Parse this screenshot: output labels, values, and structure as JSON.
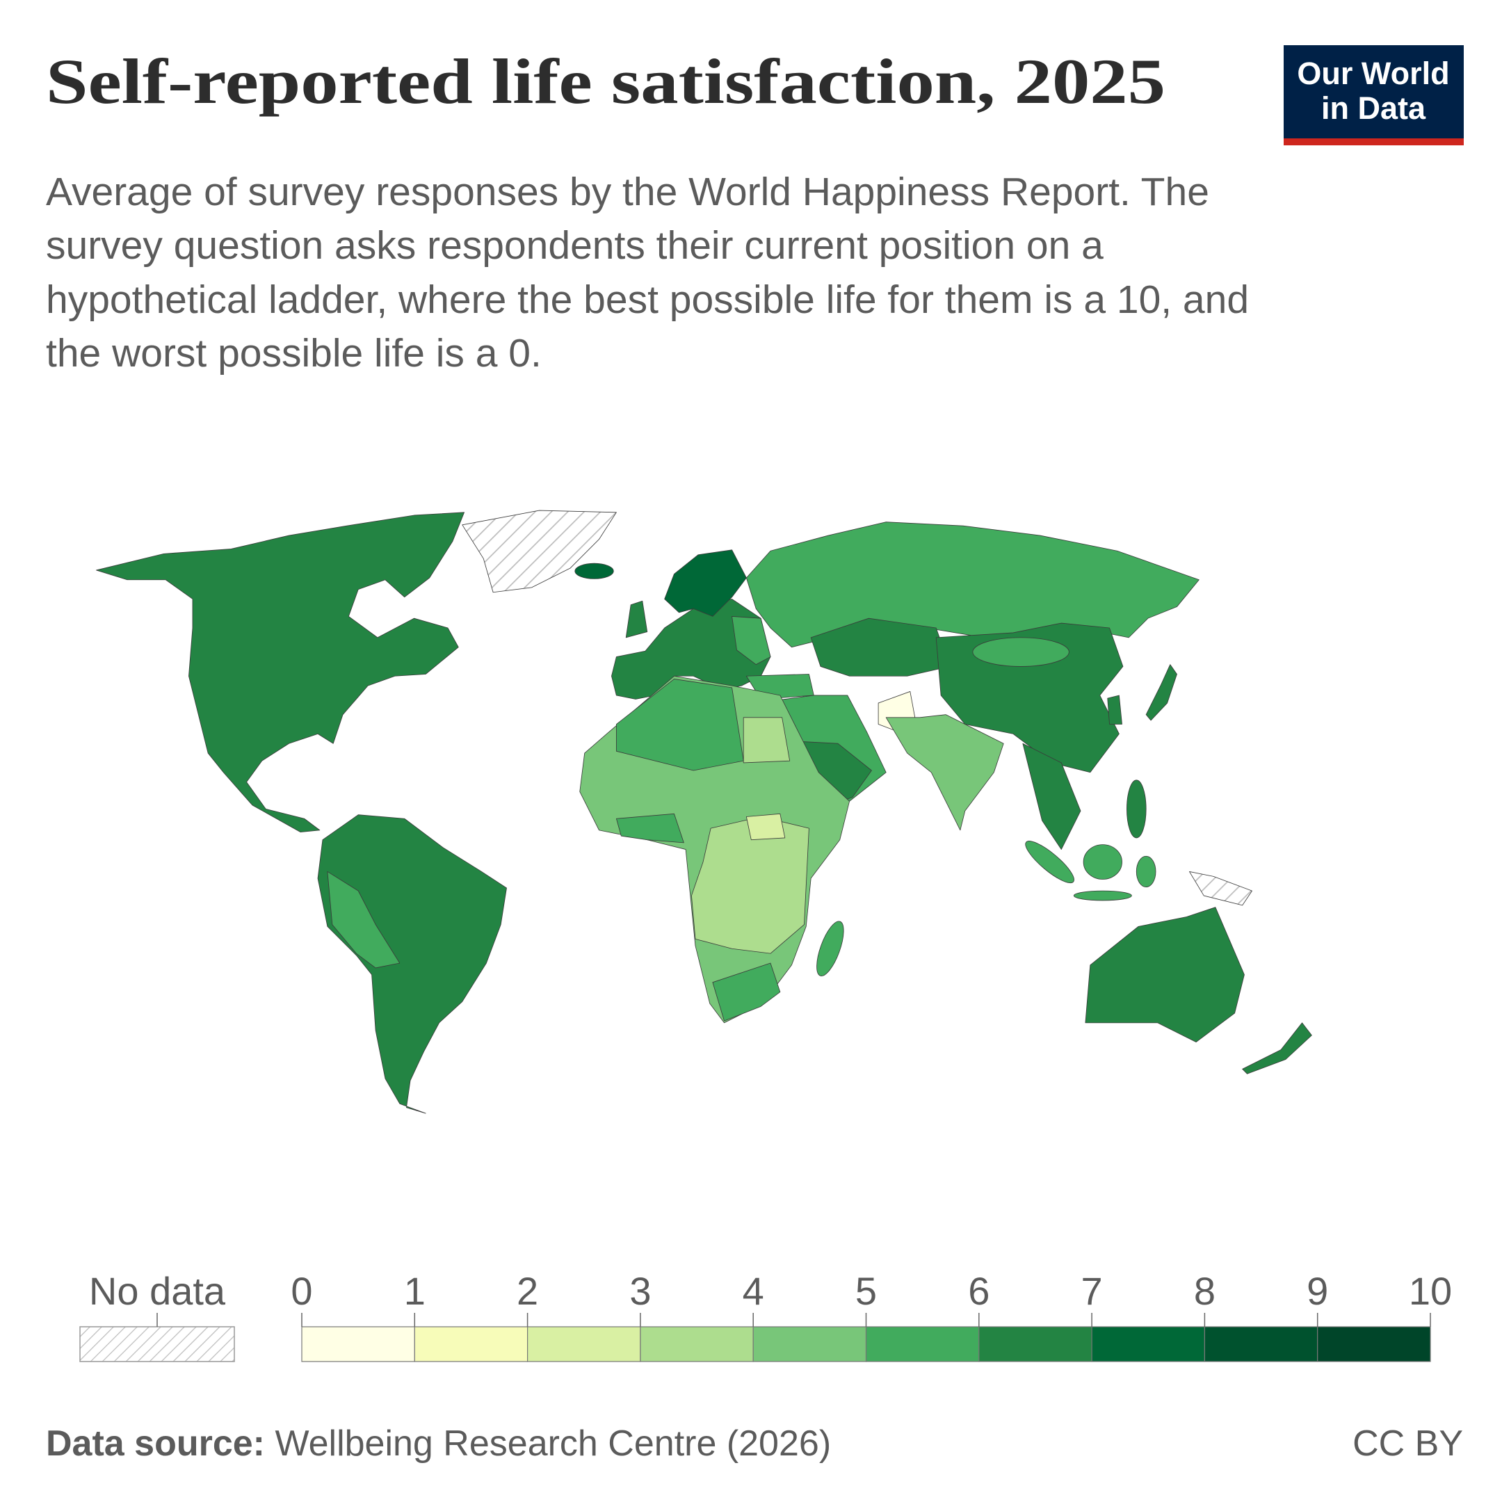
{
  "header": {
    "title": "Self-reported life satisfaction, 2025",
    "subtitle": [
      "Average of survey responses by the World Happiness Report. The",
      "survey question asks respondents their current position on a",
      "hypothetical ladder, where the best possible life for them is a 10, and",
      "the worst possible life is a 0."
    ],
    "logo": [
      "Our World",
      "in Data"
    ]
  },
  "legend": {
    "no_data": "No data",
    "ticks": [
      0,
      1,
      2,
      3,
      4,
      5,
      6,
      7,
      8,
      9,
      10
    ],
    "colors": [
      "#ffffe5",
      "#f7fcb9",
      "#d9f0a3",
      "#addd8e",
      "#78c679",
      "#41ab5d",
      "#238443",
      "#006837",
      "#00522e",
      "#004529"
    ]
  },
  "footer": {
    "source_label": "Data source:",
    "source": "Wellbeing Research Centre (2026)",
    "license": "CC BY"
  }
}
